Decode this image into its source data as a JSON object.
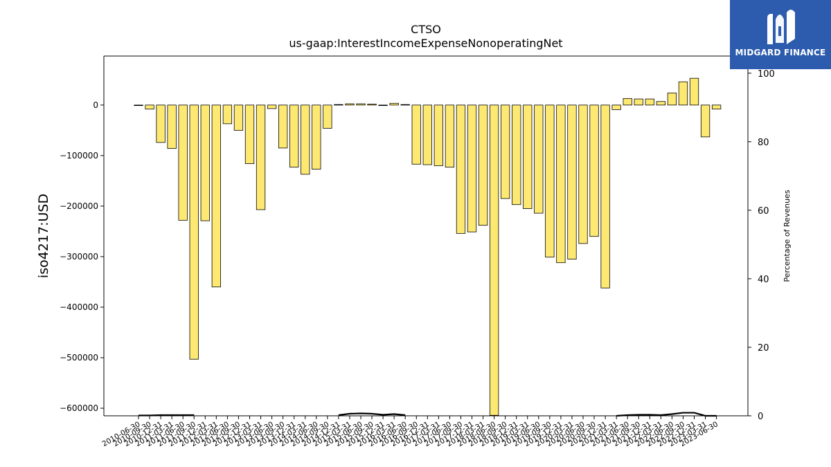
{
  "chart_data": {
    "type": "bar",
    "title": "CTSO",
    "subtitle": "us-gaap:InterestIncomeExpenseNonoperatingNet",
    "ylabel": "iso4217:USD",
    "y2label": "Percentage of Revenues",
    "ylim": [
      -615000,
      97000
    ],
    "y2lim": [
      0,
      105
    ],
    "yticks": [
      0,
      -100000,
      -200000,
      -300000,
      -400000,
      -500000,
      -600000
    ],
    "y2ticks": [
      0,
      20,
      40,
      60,
      80,
      100
    ],
    "categories": [
      "2010-06-30",
      "2010-09-30",
      "2010-12-31",
      "2011-03-31",
      "2011-06-30",
      "2011-09-30",
      "2011-12-31",
      "2012-03-31",
      "2012-06-30",
      "2012-09-30",
      "2012-12-31",
      "2013-03-31",
      "2013-06-30",
      "2013-09-30",
      "2013-12-31",
      "2014-03-31",
      "2014-06-30",
      "2014-09-30",
      "2014-12-31",
      "2015-03-31",
      "2015-06-30",
      "2015-09-30",
      "2015-12-31",
      "2016-03-31",
      "2016-06-30",
      "2016-09-30",
      "2016-12-31",
      "2017-03-31",
      "2017-06-30",
      "2017-09-30",
      "2017-12-31",
      "2018-03-31",
      "2018-06-30",
      "2018-09-30",
      "2018-12-31",
      "2019-03-31",
      "2019-06-30",
      "2019-09-30",
      "2019-12-31",
      "2020-03-31",
      "2020-06-30",
      "2020-09-30",
      "2020-12-31",
      "2021-03-31",
      "2021-06-30",
      "2021-09-30",
      "2021-12-31",
      "2022-03-31",
      "2022-06-30",
      "2022-09-30",
      "2022-12-31",
      "2023-03-31",
      "2023-06-30"
    ],
    "series": [
      {
        "values": [
          -1000,
          -8000,
          -74000,
          -86000,
          -228000,
          -503000,
          -229000,
          -360000,
          -37000,
          -50000,
          -116000,
          -207000,
          -7000,
          -85000,
          -123000,
          -137000,
          -127000,
          -46000,
          1000,
          2500,
          2500,
          2000,
          -500,
          3500,
          1000,
          -117000,
          -118000,
          -120000,
          -123000,
          -254000,
          -251000,
          -238000,
          -614000,
          -185000,
          -197000,
          -205000,
          -214000,
          -301000,
          -312000,
          -305000,
          -274000,
          -260000,
          -362000,
          -9000,
          13000,
          12000,
          12000,
          7000,
          24000,
          46000,
          53000,
          -63000,
          -8000
        ]
      },
      {
        "axis": "right",
        "values": [
          0.1,
          0.1,
          0.2,
          0.2,
          0.2,
          0.2,
          null,
          null,
          null,
          null,
          null,
          null,
          null,
          null,
          null,
          null,
          null,
          null,
          0.2,
          0.6,
          0.7,
          0.6,
          0.3,
          0.5,
          0.2,
          null,
          null,
          null,
          null,
          null,
          null,
          null,
          null,
          null,
          null,
          null,
          null,
          null,
          null,
          null,
          null,
          null,
          null,
          0.0,
          0.2,
          0.3,
          0.3,
          0.2,
          0.5,
          0.9,
          0.9,
          0.0,
          0.0
        ]
      }
    ],
    "colors": {
      "bar_fill": "#fde972",
      "bar_edge": "#000000",
      "line": "#000000"
    }
  },
  "brand": {
    "name": "MIDGARD FINANCE",
    "bg": "#2d5cae"
  }
}
